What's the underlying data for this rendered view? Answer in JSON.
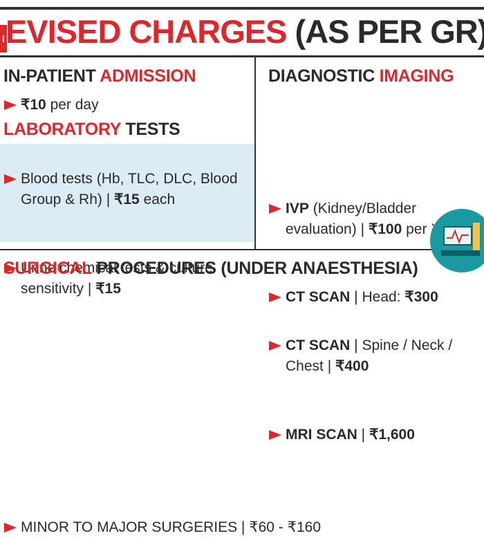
{
  "header": {
    "logo": "I",
    "title_red": "EVISED CHARGES",
    "title_dark": "(AS PER GR)"
  },
  "in_patient": {
    "heading": [
      "IN-PATIENT",
      "ADMISSION"
    ],
    "items": [
      [
        "₹10",
        " per day"
      ]
    ]
  },
  "laboratory": {
    "heading": [
      "LABORATORY",
      "TESTS"
    ],
    "items": [
      [
        "Blood tests (Hb, TLC, DLC, Blood Group & Rh) | ",
        "₹15",
        " each"
      ],
      [
        "Urine chemical tests & culture sensitivity | ",
        "₹15"
      ]
    ]
  },
  "imaging": {
    "heading": [
      "DIAGNOSTIC",
      "IMAGING"
    ],
    "items": [
      [
        "IVP",
        " (Kidney/Bladder evaluation) | ",
        "₹100",
        " per X-ray"
      ],
      [
        "CT SCAN",
        " | Head: ",
        "₹300"
      ],
      [
        "CT SCAN",
        " | Spine / Neck / Chest | ",
        "₹400"
      ],
      [
        "MRI SCAN",
        " | ",
        "₹1,600"
      ]
    ]
  },
  "surgical": {
    "heading": [
      "SURGICAL",
      "PROCEDURES (UNDER ANAESTHESIA)"
    ],
    "items": [
      [
        "MINOR TO MAJOR SURGERIES",
        " | ₹60 - ₹160"
      ]
    ]
  }
}
